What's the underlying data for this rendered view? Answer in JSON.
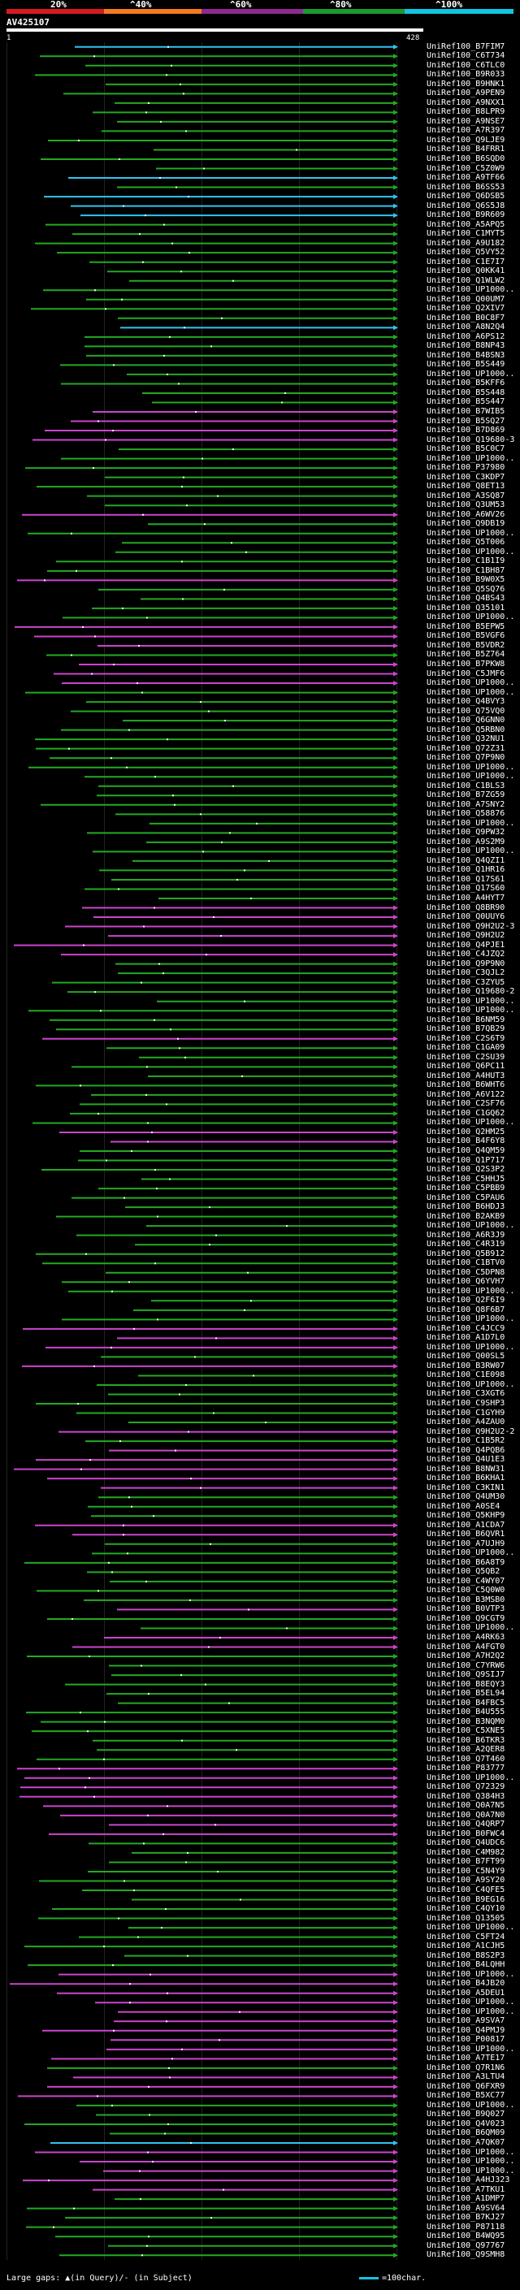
{
  "header": {
    "scale_labels": [
      "20%",
      "^40%",
      "^60%",
      "^80%",
      "^100%"
    ],
    "scale_colors": [
      "#d71920",
      "#f47b20",
      "#8e2a8f",
      "#1a9a2f",
      "#11c5e0"
    ],
    "query_id": "AV425107",
    "query_start": "1",
    "query_end": "428"
  },
  "hits": [
    {
      "id": "UniRef100_B7FIM7",
      "c": "cyan"
    },
    {
      "id": "UniRef100_C6T734",
      "c": "green"
    },
    {
      "id": "UniRef100_C6TLC0",
      "c": "green"
    },
    {
      "id": "UniRef100_B9R033",
      "c": "green"
    },
    {
      "id": "UniRef100_B9HNK1",
      "c": "green"
    },
    {
      "id": "UniRef100_A9PEN9",
      "c": "green"
    },
    {
      "id": "UniRef100_A9NXX1",
      "c": "green"
    },
    {
      "id": "UniRef100_B8LPR9",
      "c": "green"
    },
    {
      "id": "UniRef100_A9NSE7",
      "c": "green"
    },
    {
      "id": "UniRef100_A7R397",
      "c": "green"
    },
    {
      "id": "UniRef100_Q9LJE9",
      "c": "green"
    },
    {
      "id": "UniRef100_B4FRR1",
      "c": "green"
    },
    {
      "id": "UniRef100_B6SQD0",
      "c": "green"
    },
    {
      "id": "UniRef100_C5Z0W9",
      "c": "green"
    },
    {
      "id": "UniRef100_A9TF66",
      "c": "cyan"
    },
    {
      "id": "UniRef100_B6SS53",
      "c": "green"
    },
    {
      "id": "UniRef100_Q6DSB5",
      "c": "cyan"
    },
    {
      "id": "UniRef100_Q6S5J8",
      "c": "cyan"
    },
    {
      "id": "UniRef100_B9R609",
      "c": "cyan"
    },
    {
      "id": "UniRef100_A5APQ5",
      "c": "green"
    },
    {
      "id": "UniRef100_C1MYT5",
      "c": "green"
    },
    {
      "id": "UniRef100_A9U182",
      "c": "green"
    },
    {
      "id": "UniRef100_Q5VY52",
      "c": "green"
    },
    {
      "id": "UniRef100_C1E7I7",
      "c": "green"
    },
    {
      "id": "UniRef100_Q0KK41",
      "c": "green"
    },
    {
      "id": "UniRef100_Q1WLW2",
      "c": "green"
    },
    {
      "id": "UniRef100_UP1000..",
      "c": "green"
    },
    {
      "id": "UniRef100_Q00UM7",
      "c": "green"
    },
    {
      "id": "UniRef100_Q2XIV7",
      "c": "green"
    },
    {
      "id": "UniRef100_B0C8F7",
      "c": "green"
    },
    {
      "id": "UniRef100_A8N2Q4",
      "c": "cyan"
    },
    {
      "id": "UniRef100_A6PS12",
      "c": "green"
    },
    {
      "id": "UniRef100_B8NP43",
      "c": "green"
    },
    {
      "id": "UniRef100_B4BSN3",
      "c": "green"
    },
    {
      "id": "UniRef100_B5S449",
      "c": "green"
    },
    {
      "id": "UniRef100_UP1000..",
      "c": "green"
    },
    {
      "id": "UniRef100_B5KFF6",
      "c": "green"
    },
    {
      "id": "UniRef100_B5S448",
      "c": "green"
    },
    {
      "id": "UniRef100_B5S447",
      "c": "green"
    },
    {
      "id": "UniRef100_B7WIB5",
      "c": "magenta"
    },
    {
      "id": "UniRef100_B5SQ27",
      "c": "magenta"
    },
    {
      "id": "UniRef100_B7D869",
      "c": "magenta"
    },
    {
      "id": "UniRef100_Q19680-3",
      "c": "magenta"
    },
    {
      "id": "UniRef100_B5C0C7",
      "c": "green"
    },
    {
      "id": "UniRef100_UP1000..",
      "c": "green"
    },
    {
      "id": "UniRef100_P37980",
      "c": "green"
    },
    {
      "id": "UniRef100_C3KDP7",
      "c": "green"
    },
    {
      "id": "UniRef100_Q8ET13",
      "c": "green"
    },
    {
      "id": "UniRef100_A3SQ87",
      "c": "green"
    },
    {
      "id": "UniRef100_Q3UM53",
      "c": "green"
    },
    {
      "id": "UniRef100_A6WV26",
      "c": "magenta"
    },
    {
      "id": "UniRef100_Q9DB19",
      "c": "green"
    },
    {
      "id": "UniRef100_UP1000..",
      "c": "green"
    },
    {
      "id": "UniRef100_Q5T006",
      "c": "green"
    },
    {
      "id": "UniRef100_UP1000..",
      "c": "green"
    },
    {
      "id": "UniRef100_C1B1I9",
      "c": "green"
    },
    {
      "id": "UniRef100_C1BH87",
      "c": "green"
    },
    {
      "id": "UniRef100_B9W0X5",
      "c": "magenta"
    },
    {
      "id": "UniRef100_Q5SQ76",
      "c": "green"
    },
    {
      "id": "UniRef100_Q4BS43",
      "c": "green"
    },
    {
      "id": "UniRef100_Q35101",
      "c": "green"
    },
    {
      "id": "UniRef100_UP1000..",
      "c": "green"
    },
    {
      "id": "UniRef100_B5EPW5",
      "c": "magenta"
    },
    {
      "id": "UniRef100_B5VGF6",
      "c": "magenta"
    },
    {
      "id": "UniRef100_B5VDR2",
      "c": "magenta"
    },
    {
      "id": "UniRef100_B5Z764",
      "c": "green"
    },
    {
      "id": "UniRef100_B7PKW8",
      "c": "magenta"
    },
    {
      "id": "UniRef100_C5JMF6",
      "c": "magenta"
    },
    {
      "id": "UniRef100_UP1000..",
      "c": "magenta"
    },
    {
      "id": "UniRef100_UP1000..",
      "c": "green"
    },
    {
      "id": "UniRef100_Q4BVY3",
      "c": "green"
    },
    {
      "id": "UniRef100_Q75VQ0",
      "c": "green"
    },
    {
      "id": "UniRef100_Q6GNN0",
      "c": "green"
    },
    {
      "id": "UniRef100_Q5RBN0",
      "c": "green"
    },
    {
      "id": "UniRef100_Q32NU1",
      "c": "green"
    },
    {
      "id": "UniRef100_Q72Z31",
      "c": "green"
    },
    {
      "id": "UniRef100_Q7P9N0",
      "c": "green"
    },
    {
      "id": "UniRef100_UP1000..",
      "c": "green"
    },
    {
      "id": "UniRef100_UP1000..",
      "c": "green"
    },
    {
      "id": "UniRef100_C1BLS3",
      "c": "green"
    },
    {
      "id": "UniRef100_B7ZG59",
      "c": "green"
    },
    {
      "id": "UniRef100_A7SNY2",
      "c": "green"
    },
    {
      "id": "UniRef100_Q58876",
      "c": "green"
    },
    {
      "id": "UniRef100_UP1000..",
      "c": "green"
    },
    {
      "id": "UniRef100_Q9PW32",
      "c": "green"
    },
    {
      "id": "UniRef100_A9S2M9",
      "c": "green"
    },
    {
      "id": "UniRef100_UP1000..",
      "c": "green"
    },
    {
      "id": "UniRef100_Q4QZI1",
      "c": "green"
    },
    {
      "id": "UniRef100_Q1HR16",
      "c": "green"
    },
    {
      "id": "UniRef100_Q17S61",
      "c": "green"
    },
    {
      "id": "UniRef100_Q17S60",
      "c": "green"
    },
    {
      "id": "UniRef100_A4HYT7",
      "c": "green"
    },
    {
      "id": "UniRef100_Q8BR90",
      "c": "magenta"
    },
    {
      "id": "UniRef100_Q0UUY6",
      "c": "magenta"
    },
    {
      "id": "UniRef100_Q9H2U2-3",
      "c": "magenta"
    },
    {
      "id": "UniRef100_Q9H2U2",
      "c": "magenta"
    },
    {
      "id": "UniRef100_Q4PJE1",
      "c": "magenta"
    },
    {
      "id": "UniRef100_C4JZQ2",
      "c": "magenta"
    },
    {
      "id": "UniRef100_Q9P9N0",
      "c": "green"
    },
    {
      "id": "UniRef100_C3QJL2",
      "c": "green"
    },
    {
      "id": "UniRef100_C3ZYU5",
      "c": "green"
    },
    {
      "id": "UniRef100_Q19680-2",
      "c": "green"
    },
    {
      "id": "UniRef100_UP1000..",
      "c": "green"
    },
    {
      "id": "UniRef100_UP1000..",
      "c": "green"
    },
    {
      "id": "UniRef100_B6NM59",
      "c": "green"
    },
    {
      "id": "UniRef100_B7QB29",
      "c": "green"
    },
    {
      "id": "UniRef100_C2S6T9",
      "c": "magenta"
    },
    {
      "id": "UniRef100_C1GA09",
      "c": "green"
    },
    {
      "id": "UniRef100_C2SU39",
      "c": "green"
    },
    {
      "id": "UniRef100_Q6PC11",
      "c": "green"
    },
    {
      "id": "UniRef100_A4HUT3",
      "c": "green"
    },
    {
      "id": "UniRef100_B6WHT6",
      "c": "green"
    },
    {
      "id": "UniRef100_A6V122",
      "c": "green"
    },
    {
      "id": "UniRef100_C2SF76",
      "c": "green"
    },
    {
      "id": "UniRef100_C1GQ62",
      "c": "green"
    },
    {
      "id": "UniRef100_UP1000..",
      "c": "green"
    },
    {
      "id": "UniRef100_Q2HM25",
      "c": "magenta"
    },
    {
      "id": "UniRef100_B4F6Y8",
      "c": "magenta"
    },
    {
      "id": "UniRef100_Q4QM59",
      "c": "green"
    },
    {
      "id": "UniRef100_Q1P717",
      "c": "green"
    },
    {
      "id": "UniRef100_Q2S3P2",
      "c": "green"
    },
    {
      "id": "UniRef100_C5HHJ5",
      "c": "green"
    },
    {
      "id": "UniRef100_C5PBB9",
      "c": "green"
    },
    {
      "id": "UniRef100_C5PAU6",
      "c": "green"
    },
    {
      "id": "UniRef100_B6HDJ3",
      "c": "green"
    },
    {
      "id": "UniRef100_B2AKB9",
      "c": "green"
    },
    {
      "id": "UniRef100_UP1000..",
      "c": "green"
    },
    {
      "id": "UniRef100_A6R3J9",
      "c": "green"
    },
    {
      "id": "UniRef100_C4R319",
      "c": "green"
    },
    {
      "id": "UniRef100_Q5B912",
      "c": "green"
    },
    {
      "id": "UniRef100_C1BTV0",
      "c": "green"
    },
    {
      "id": "UniRef100_C5DPN8",
      "c": "green"
    },
    {
      "id": "UniRef100_Q6YVH7",
      "c": "green"
    },
    {
      "id": "UniRef100_UP1000..",
      "c": "green"
    },
    {
      "id": "UniRef100_Q2F6I9",
      "c": "green"
    },
    {
      "id": "UniRef100_Q8F6B7",
      "c": "green"
    },
    {
      "id": "UniRef100_UP1000..",
      "c": "green"
    },
    {
      "id": "UniRef100_C4JCC9",
      "c": "magenta"
    },
    {
      "id": "UniRef100_A1D7L0",
      "c": "magenta"
    },
    {
      "id": "UniRef100_UP1000..",
      "c": "magenta"
    },
    {
      "id": "UniRef100_Q00SL5",
      "c": "green"
    },
    {
      "id": "UniRef100_B3RW07",
      "c": "magenta"
    },
    {
      "id": "UniRef100_C1E098",
      "c": "green"
    },
    {
      "id": "UniRef100_UP1000..",
      "c": "green"
    },
    {
      "id": "UniRef100_C3XGT6",
      "c": "green"
    },
    {
      "id": "UniRef100_C9SHP3",
      "c": "green"
    },
    {
      "id": "UniRef100_C1GYH9",
      "c": "green"
    },
    {
      "id": "UniRef100_A4ZAU0",
      "c": "green"
    },
    {
      "id": "UniRef100_Q9H2U2-2",
      "c": "magenta"
    },
    {
      "id": "UniRef100_C1B5R2",
      "c": "green"
    },
    {
      "id": "UniRef100_Q4PQB6",
      "c": "magenta"
    },
    {
      "id": "UniRef100_Q4U1E3",
      "c": "magenta"
    },
    {
      "id": "UniRef100_B8NW31",
      "c": "magenta"
    },
    {
      "id": "UniRef100_B6KHA1",
      "c": "magenta"
    },
    {
      "id": "UniRef100_C3KIN1",
      "c": "magenta"
    },
    {
      "id": "UniRef100_Q4UM30",
      "c": "green"
    },
    {
      "id": "UniRef100_A0SE4",
      "c": "green"
    },
    {
      "id": "UniRef100_Q5KHP9",
      "c": "green"
    },
    {
      "id": "UniRef100_A1CDA7",
      "c": "magenta"
    },
    {
      "id": "UniRef100_B6QVR1",
      "c": "magenta"
    },
    {
      "id": "UniRef100_A7UJH9",
      "c": "green"
    },
    {
      "id": "UniRef100_UP1000..",
      "c": "green"
    },
    {
      "id": "UniRef100_B6A8T9",
      "c": "green"
    },
    {
      "id": "UniRef100_Q5QB2",
      "c": "green"
    },
    {
      "id": "UniRef100_C4WY07",
      "c": "green"
    },
    {
      "id": "UniRef100_C5Q0W0",
      "c": "green"
    },
    {
      "id": "UniRef100_B3MSB0",
      "c": "green"
    },
    {
      "id": "UniRef100_B0VTP3",
      "c": "magenta"
    },
    {
      "id": "UniRef100_Q9CGT9",
      "c": "green"
    },
    {
      "id": "UniRef100_UP1000..",
      "c": "green"
    },
    {
      "id": "UniRef100_A4RK63",
      "c": "magenta"
    },
    {
      "id": "UniRef100_A4FGT0",
      "c": "magenta"
    },
    {
      "id": "UniRef100_A7H2Q2",
      "c": "green"
    },
    {
      "id": "UniRef100_C7YRW6",
      "c": "green"
    },
    {
      "id": "UniRef100_Q9SIJ7",
      "c": "green"
    },
    {
      "id": "UniRef100_B8EQY3",
      "c": "green"
    },
    {
      "id": "UniRef100_B5EL94",
      "c": "green"
    },
    {
      "id": "UniRef100_B4FBC5",
      "c": "green"
    },
    {
      "id": "UniRef100_B4U555",
      "c": "green"
    },
    {
      "id": "UniRef100_B3NQM0",
      "c": "green"
    },
    {
      "id": "UniRef100_C5XNE5",
      "c": "green"
    },
    {
      "id": "UniRef100_B6TKR3",
      "c": "green"
    },
    {
      "id": "UniRef100_A2QER8",
      "c": "green"
    },
    {
      "id": "UniRef100_Q7T460",
      "c": "green"
    },
    {
      "id": "UniRef100_P83777",
      "c": "magenta"
    },
    {
      "id": "UniRef100_UP1000..",
      "c": "magenta"
    },
    {
      "id": "UniRef100_Q72329",
      "c": "magenta"
    },
    {
      "id": "UniRef100_Q384H3",
      "c": "magenta"
    },
    {
      "id": "UniRef100_Q0A7N5",
      "c": "magenta"
    },
    {
      "id": "UniRef100_Q0A7N0",
      "c": "magenta"
    },
    {
      "id": "UniRef100_Q4QRP7",
      "c": "magenta"
    },
    {
      "id": "UniRef100_B0FWC4",
      "c": "magenta"
    },
    {
      "id": "UniRef100_Q4UDC6",
      "c": "green"
    },
    {
      "id": "UniRef100_C4M982",
      "c": "green"
    },
    {
      "id": "UniRef100_B7FT99",
      "c": "green"
    },
    {
      "id": "UniRef100_C5N4Y9",
      "c": "green"
    },
    {
      "id": "UniRef100_A9SY20",
      "c": "green"
    },
    {
      "id": "UniRef100_C4QFE5",
      "c": "green"
    },
    {
      "id": "UniRef100_B9EG16",
      "c": "green"
    },
    {
      "id": "UniRef100_C4QY10",
      "c": "green"
    },
    {
      "id": "UniRef100_Q13505",
      "c": "green"
    },
    {
      "id": "UniRef100_UP1000..",
      "c": "green"
    },
    {
      "id": "UniRef100_C5FT24",
      "c": "green"
    },
    {
      "id": "UniRef100_A1CJH5",
      "c": "green"
    },
    {
      "id": "UniRef100_B8S2P3",
      "c": "green"
    },
    {
      "id": "UniRef100_B4LQHH",
      "c": "green"
    },
    {
      "id": "UniRef100_UP1000..",
      "c": "magenta"
    },
    {
      "id": "UniRef100_B4JB20",
      "c": "magenta"
    },
    {
      "id": "UniRef100_A5DEU1",
      "c": "magenta"
    },
    {
      "id": "UniRef100_UP1000..",
      "c": "magenta"
    },
    {
      "id": "UniRef100_UP1000..",
      "c": "magenta"
    },
    {
      "id": "UniRef100_A9SVA7",
      "c": "magenta"
    },
    {
      "id": "UniRef100_Q4PMJ9",
      "c": "magenta"
    },
    {
      "id": "UniRef100_P00817",
      "c": "magenta"
    },
    {
      "id": "UniRef100_UP1000..",
      "c": "magenta"
    },
    {
      "id": "UniRef100_A7TE17",
      "c": "magenta"
    },
    {
      "id": "UniRef100_Q7R1N6",
      "c": "green"
    },
    {
      "id": "UniRef100_A3LTU4",
      "c": "magenta"
    },
    {
      "id": "UniRef100_Q6FXR9",
      "c": "magenta"
    },
    {
      "id": "UniRef100_B5XC77",
      "c": "magenta"
    },
    {
      "id": "UniRef100_UP1000..",
      "c": "green"
    },
    {
      "id": "UniRef100_B9Q027",
      "c": "green"
    },
    {
      "id": "UniRef100_Q4V023",
      "c": "green"
    },
    {
      "id": "UniRef100_B6QM09",
      "c": "green"
    },
    {
      "id": "UniRef100_A7QK07",
      "c": "cyan"
    },
    {
      "id": "UniRef100_UP1000..",
      "c": "magenta"
    },
    {
      "id": "UniRef100_UP1000..",
      "c": "magenta"
    },
    {
      "id": "UniRef100_UP1000..",
      "c": "magenta"
    },
    {
      "id": "UniRef100_A4HJ323",
      "c": "magenta"
    },
    {
      "id": "UniRef100_A7TKU1",
      "c": "magenta"
    },
    {
      "id": "UniRef100_A1DMP7",
      "c": "green"
    },
    {
      "id": "UniRef100_A9SV64",
      "c": "green"
    },
    {
      "id": "UniRef100_B7KJ27",
      "c": "green"
    },
    {
      "id": "UniRef100_P87118",
      "c": "green"
    },
    {
      "id": "UniRef100_B4WQ95",
      "c": "green"
    },
    {
      "id": "UniRef100_Q97767",
      "c": "green"
    },
    {
      "id": "UniRef100_Q9SMH8",
      "c": "green"
    }
  ],
  "legend": {
    "gaps_text": "Large gaps: ▲(in Query)/- (in Subject)",
    "scale_text": "=100char."
  }
}
